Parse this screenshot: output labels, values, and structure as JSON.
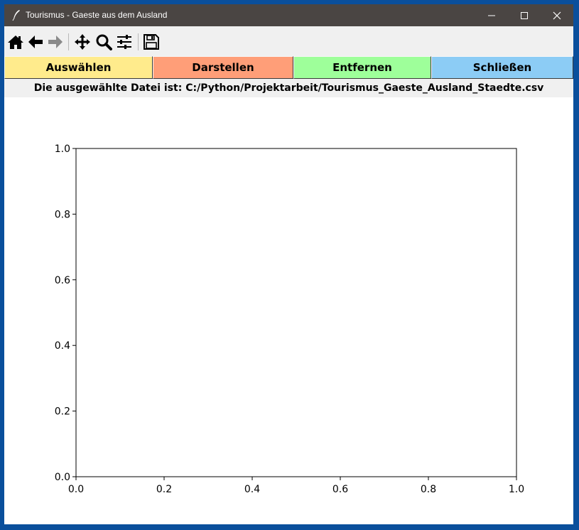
{
  "window": {
    "title": "Tourismus - Gaeste aus dem Ausland"
  },
  "toolbar": {
    "icons": [
      "home-icon",
      "back-arrow-icon",
      "forward-arrow-icon",
      "pan-icon",
      "zoom-icon",
      "configure-subplots-icon",
      "save-icon"
    ]
  },
  "buttons": {
    "select_label": "Auswählen",
    "select_color": "#ffeb8c",
    "plot_label": "Darstellen",
    "plot_color": "#ff9e78",
    "remove_label": "Entfernen",
    "remove_color": "#9eff9a",
    "close_label": "Schließen",
    "close_color": "#8cccf5"
  },
  "status": {
    "file_text": "Die ausgewählte Datei ist: C:/Python/Projektarbeit/Tourismus_Gaeste_Ausland_Staedte.csv"
  },
  "chart_data": {
    "type": "line",
    "series": [],
    "xlim": [
      0.0,
      1.0
    ],
    "ylim": [
      0.0,
      1.0
    ],
    "xticks": [
      "0.0",
      "0.2",
      "0.4",
      "0.6",
      "0.8",
      "1.0"
    ],
    "yticks": [
      "0.0",
      "0.2",
      "0.4",
      "0.6",
      "0.8",
      "1.0"
    ],
    "title": "",
    "xlabel": "",
    "ylabel": "",
    "grid": false
  }
}
